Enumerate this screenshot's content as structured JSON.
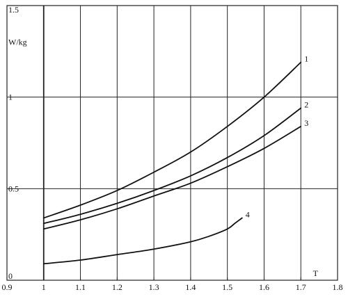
{
  "chart_data": {
    "type": "line",
    "title": "",
    "xlabel": "T",
    "ylabel": "W/kg",
    "xlim": [
      0.9,
      1.8
    ],
    "ylim": [
      0,
      1.5
    ],
    "x_ticks": [
      0.9,
      1.0,
      1.1,
      1.2,
      1.3,
      1.4,
      1.5,
      1.6,
      1.7,
      1.8
    ],
    "x_tick_labels": [
      "0.9",
      "1",
      "1.1",
      "1.2",
      "1.3",
      "1.4",
      "1.5",
      "1.6",
      "1.7",
      "1.8"
    ],
    "y_ticks": [
      0,
      0.5,
      1.0,
      1.5
    ],
    "y_tick_labels": [
      "0",
      "0.5",
      "1",
      "1.5"
    ],
    "grid": true,
    "legend": "inline labels at line ends",
    "series": [
      {
        "name": "1",
        "x": [
          1.0,
          1.1,
          1.2,
          1.3,
          1.4,
          1.5,
          1.6,
          1.7
        ],
        "y": [
          0.34,
          0.41,
          0.49,
          0.59,
          0.7,
          0.84,
          1.0,
          1.19
        ]
      },
      {
        "name": "2",
        "x": [
          1.0,
          1.1,
          1.2,
          1.3,
          1.4,
          1.5,
          1.6,
          1.7
        ],
        "y": [
          0.31,
          0.36,
          0.42,
          0.49,
          0.57,
          0.67,
          0.79,
          0.94
        ]
      },
      {
        "name": "3",
        "x": [
          1.0,
          1.1,
          1.2,
          1.3,
          1.4,
          1.5,
          1.6,
          1.7
        ],
        "y": [
          0.28,
          0.33,
          0.39,
          0.46,
          0.53,
          0.62,
          0.72,
          0.84
        ]
      },
      {
        "name": "4",
        "x": [
          1.0,
          1.1,
          1.2,
          1.3,
          1.4,
          1.45,
          1.5,
          1.52,
          1.54
        ],
        "y": [
          0.09,
          0.11,
          0.14,
          0.17,
          0.21,
          0.24,
          0.28,
          0.31,
          0.34
        ]
      }
    ]
  }
}
